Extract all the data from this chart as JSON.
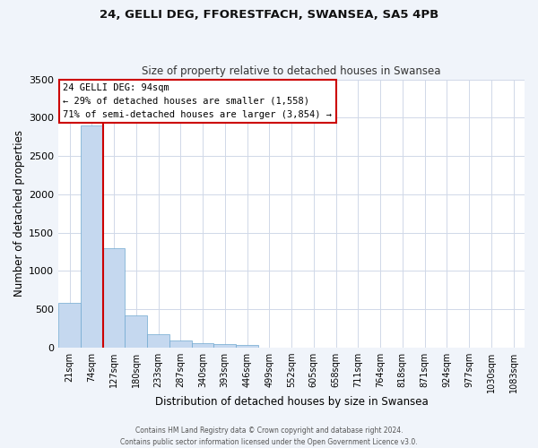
{
  "title": "24, GELLI DEG, FFORESTFACH, SWANSEA, SA5 4PB",
  "subtitle": "Size of property relative to detached houses in Swansea",
  "xlabel": "Distribution of detached houses by size in Swansea",
  "ylabel": "Number of detached properties",
  "bar_labels": [
    "21sqm",
    "74sqm",
    "127sqm",
    "180sqm",
    "233sqm",
    "287sqm",
    "340sqm",
    "393sqm",
    "446sqm",
    "499sqm",
    "552sqm",
    "605sqm",
    "658sqm",
    "711sqm",
    "764sqm",
    "818sqm",
    "871sqm",
    "924sqm",
    "977sqm",
    "1030sqm",
    "1083sqm"
  ],
  "bar_values": [
    580,
    2900,
    1300,
    420,
    170,
    85,
    55,
    45,
    30,
    0,
    0,
    0,
    0,
    0,
    0,
    0,
    0,
    0,
    0,
    0,
    0
  ],
  "bar_color": "#c5d8ef",
  "bar_edgecolor": "#6fa8d0",
  "vline_x": 1.5,
  "vline_color": "#cc0000",
  "ylim": [
    0,
    3500
  ],
  "yticks": [
    0,
    500,
    1000,
    1500,
    2000,
    2500,
    3000,
    3500
  ],
  "annotation_title": "24 GELLI DEG: 94sqm",
  "annotation_line1": "← 29% of detached houses are smaller (1,558)",
  "annotation_line2": "71% of semi-detached houses are larger (3,854) →",
  "annotation_box_facecolor": "#ffffff",
  "annotation_box_edgecolor": "#cc0000",
  "footer1": "Contains HM Land Registry data © Crown copyright and database right 2024.",
  "footer2": "Contains public sector information licensed under the Open Government Licence v3.0.",
  "fig_bg_color": "#f0f4fa",
  "plot_bg_color": "#ffffff",
  "grid_color": "#d0d8e8"
}
